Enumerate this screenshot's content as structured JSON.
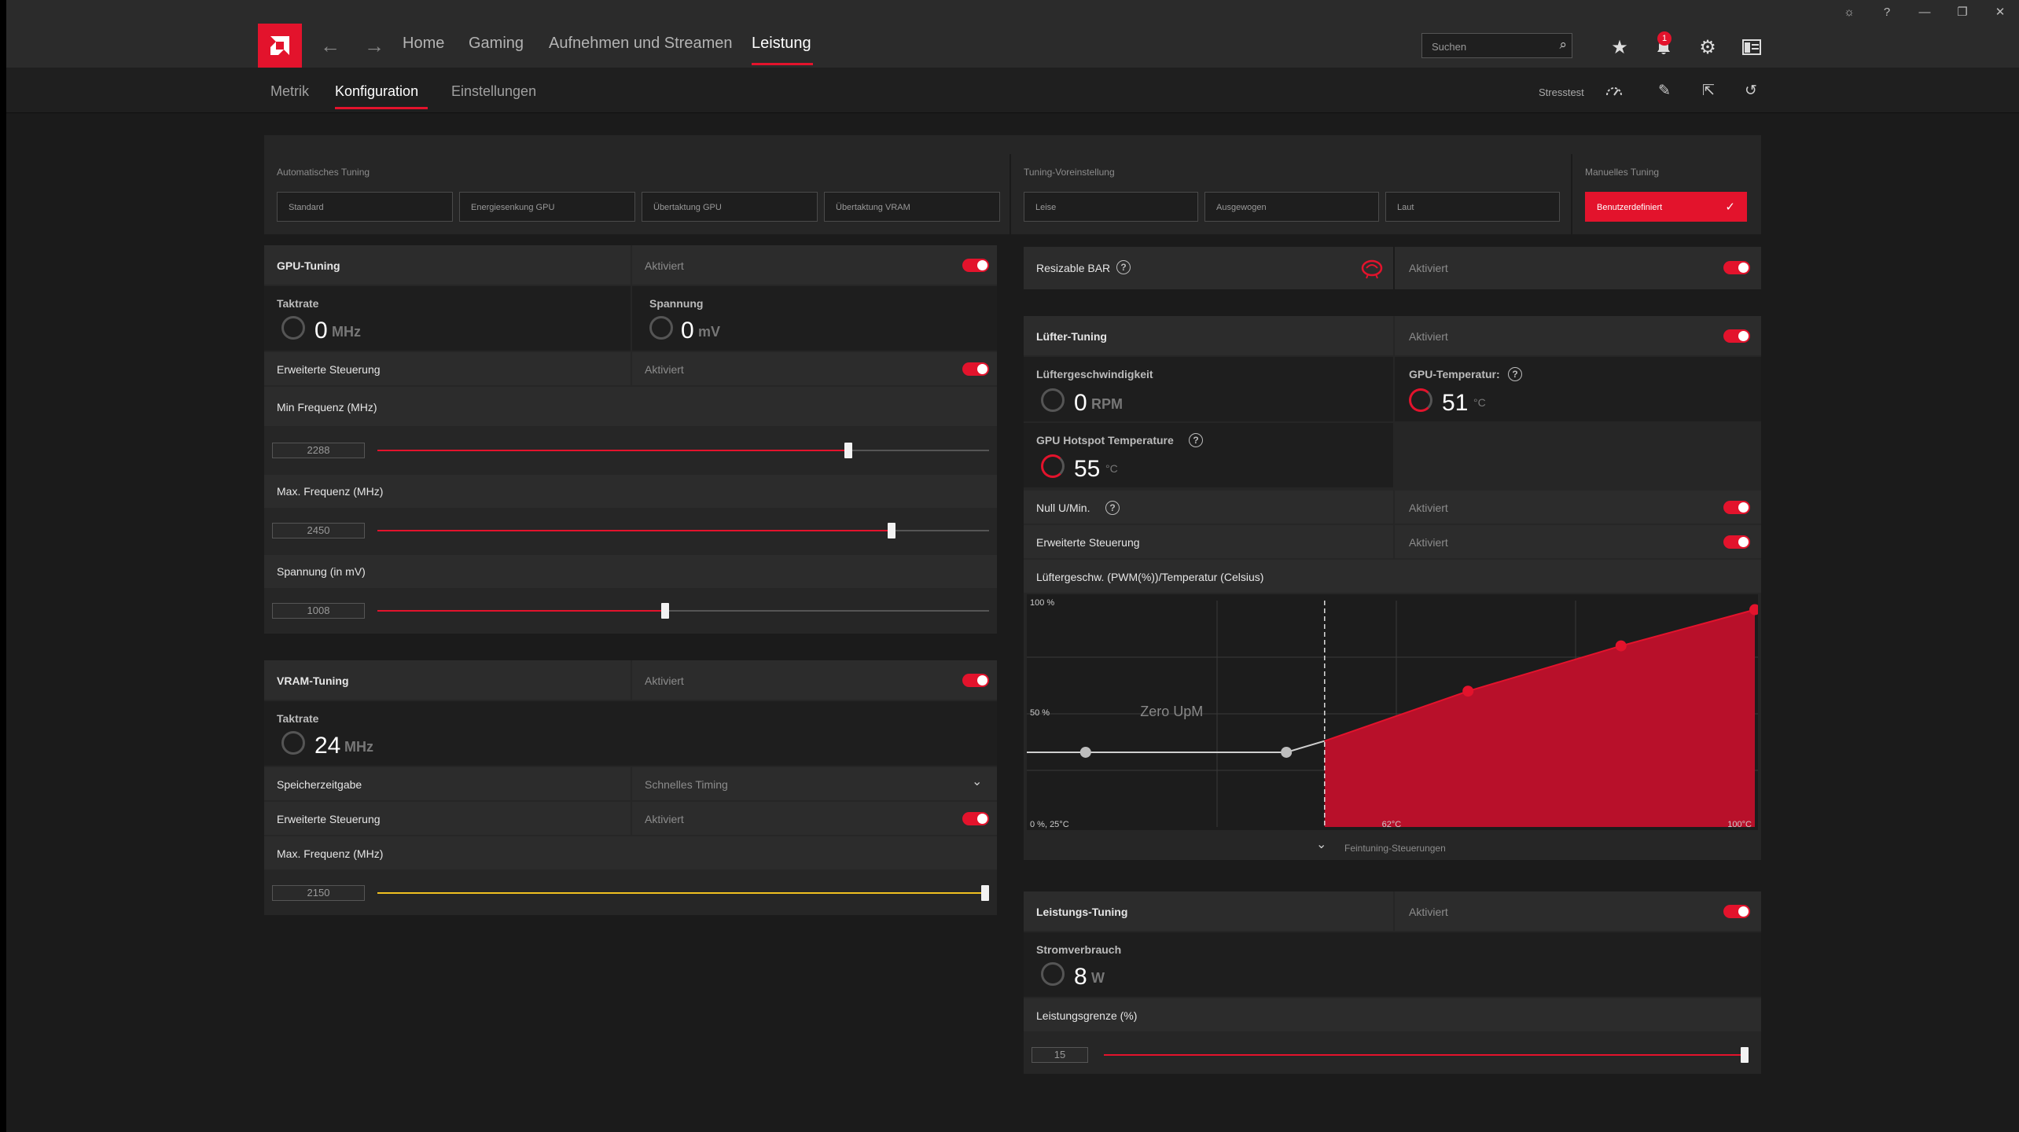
{
  "nav": {
    "home": "Home",
    "gaming": "Gaming",
    "streaming": "Aufnehmen und Streamen",
    "performance": "Leistung",
    "search_placeholder": "Suchen",
    "notification_count": "1"
  },
  "subnav": {
    "metrics": "Metrik",
    "config": "Konfiguration",
    "settings": "Einstellungen",
    "stresstest": "Stresstest"
  },
  "tuning": {
    "auto_label": "Automatisches Tuning",
    "auto_options": [
      "Standard",
      "Energiesenkung GPU",
      "Übertaktung GPU",
      "Übertaktung VRAM"
    ],
    "preset_label": "Tuning-Voreinstellung",
    "preset_options": [
      "Leise",
      "Ausgewogen",
      "Laut"
    ],
    "manual_label": "Manuelles Tuning",
    "manual_option": "Benutzerdefiniert"
  },
  "gpu": {
    "title": "GPU-Tuning",
    "status": "Aktiviert",
    "clock_label": "Taktrate",
    "clock_value": "0",
    "clock_unit": "MHz",
    "voltage_label": "Spannung",
    "voltage_value": "0",
    "voltage_unit": "mV",
    "advanced_label": "Erweiterte Steuerung",
    "advanced_status": "Aktiviert",
    "min_freq_label": "Min Frequenz (MHz)",
    "min_freq_value": "2288",
    "min_freq_fraction": 0.77,
    "max_freq_label": "Max. Frequenz (MHz)",
    "max_freq_value": "2450",
    "max_freq_fraction": 0.84,
    "volt_label": "Spannung (in mV)",
    "volt_value": "1008",
    "volt_fraction": 0.47
  },
  "vram": {
    "title": "VRAM-Tuning",
    "status": "Aktiviert",
    "clock_label": "Taktrate",
    "clock_value": "24",
    "clock_unit": "MHz",
    "timing_label": "Speicherzeitgabe",
    "timing_value": "Schnelles Timing",
    "advanced_label": "Erweiterte Steuerung",
    "advanced_status": "Aktiviert",
    "max_freq_label": "Max. Frequenz (MHz)",
    "max_freq_value": "2150",
    "max_freq_fraction": 1.0
  },
  "bar": {
    "label": "Resizable BAR",
    "status": "Aktiviert"
  },
  "fan": {
    "title": "Lüfter-Tuning",
    "status": "Aktiviert",
    "speed_label": "Lüftergeschwindigkeit",
    "speed_value": "0",
    "speed_unit": "RPM",
    "temp_label": "GPU-Temperatur:",
    "temp_value": "51",
    "temp_unit": "°C",
    "hotspot_label": "GPU Hotspot Temperature",
    "hotspot_value": "55",
    "hotspot_unit": "°C",
    "zero_label": "Null U/Min.",
    "zero_status": "Aktiviert",
    "advanced_label": "Erweiterte Steuerung",
    "advanced_status": "Aktiviert",
    "curve_label": "Lüftergeschw. (PWM(%))/Temperatur (Celsius)",
    "fine_label": "Feintuning-Steuerungen"
  },
  "chart_data": {
    "type": "area",
    "title": "Lüftergeschw. (PWM(%))/Temperatur (Celsius)",
    "y_ticks": [
      "100 %",
      "50 %",
      "0 %, 25°C"
    ],
    "x_ticks": [
      "62°C",
      "100°C"
    ],
    "annotation": "Zero UpM",
    "xlim": [
      25,
      100
    ],
    "ylim": [
      0,
      100
    ],
    "x": [
      30,
      51,
      55,
      70,
      86,
      100
    ],
    "values": [
      33,
      33,
      38,
      60,
      80,
      96
    ],
    "zero_rpm_limit": 55
  },
  "power": {
    "title": "Leistungs-Tuning",
    "status": "Aktiviert",
    "usage_label": "Stromverbrauch",
    "usage_value": "8",
    "usage_unit": "W",
    "limit_label": "Leistungsgrenze (%)",
    "limit_value": "15",
    "limit_fraction": 1.0
  }
}
